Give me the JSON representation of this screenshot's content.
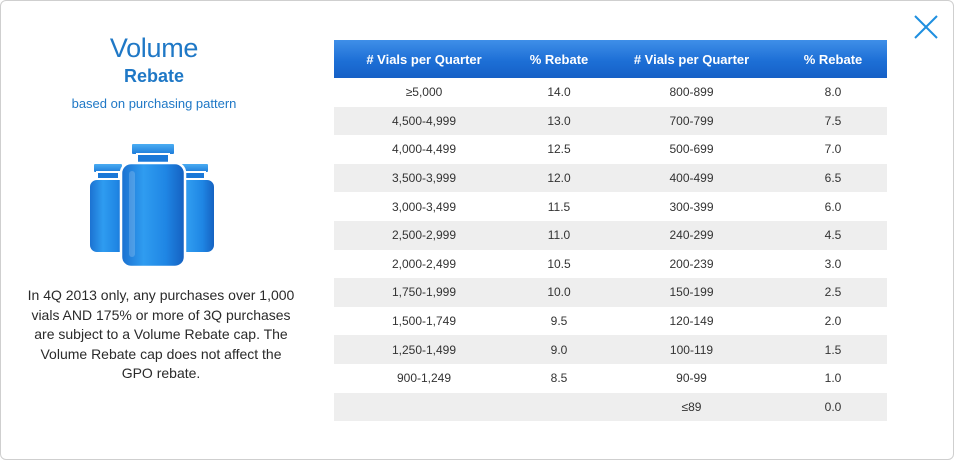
{
  "left": {
    "title_main": "Volume",
    "title_sub": "Rebate",
    "title_note": "based on purchasing pattern",
    "disclaimer": "In 4Q 2013 only, any purchases over 1,000 vials AND 175% or more of 3Q purchases are subject to a Volume Rebate cap. The Volume Rebate cap does not affect the GPO rebate."
  },
  "colors": {
    "accent": "#1f78c6",
    "header_blue": "#1d6fd6",
    "row_alt": "#eeeeee"
  },
  "icons": {
    "close": "close-icon",
    "vials": "vials-icon"
  },
  "table": {
    "headers": [
      "# Vials per Quarter",
      "% Rebate",
      "# Vials per Quarter",
      "% Rebate"
    ],
    "rows": [
      [
        "≥5,000",
        "14.0",
        "800-899",
        "8.0"
      ],
      [
        "4,500-4,999",
        "13.0",
        "700-799",
        "7.5"
      ],
      [
        "4,000-4,499",
        "12.5",
        "500-699",
        "7.0"
      ],
      [
        "3,500-3,999",
        "12.0",
        "400-499",
        "6.5"
      ],
      [
        "3,000-3,499",
        "11.5",
        "300-399",
        "6.0"
      ],
      [
        "2,500-2,999",
        "11.0",
        "240-299",
        "4.5"
      ],
      [
        "2,000-2,499",
        "10.5",
        "200-239",
        "3.0"
      ],
      [
        "1,750-1,999",
        "10.0",
        "150-199",
        "2.5"
      ],
      [
        "1,500-1,749",
        "9.5",
        "120-149",
        "2.0"
      ],
      [
        "1,250-1,499",
        "9.0",
        "100-119",
        "1.5"
      ],
      [
        "900-1,249",
        "8.5",
        "90-99",
        "1.0"
      ],
      [
        "",
        "",
        "≤89",
        "0.0"
      ]
    ]
  }
}
